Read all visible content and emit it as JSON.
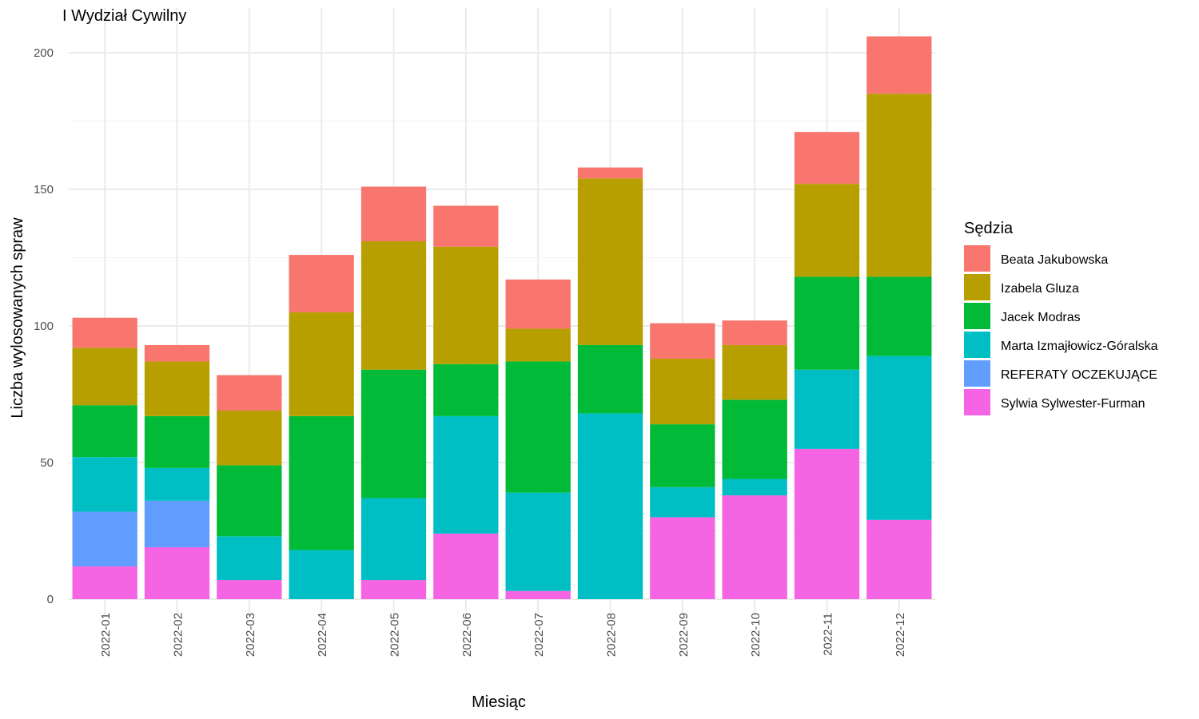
{
  "chart_data": {
    "type": "bar",
    "stacked": true,
    "title": "I Wydział Cywilny",
    "xlabel": "Miesiąc",
    "ylabel": "Liczba wylosowanych spraw",
    "ylim": [
      0,
      210
    ],
    "yticks": [
      0,
      50,
      100,
      150,
      200
    ],
    "grid": true,
    "legend": {
      "title": "Sędzia",
      "position": "right"
    },
    "categories": [
      "2022-01",
      "2022-02",
      "2022-03",
      "2022-04",
      "2022-05",
      "2022-06",
      "2022-07",
      "2022-08",
      "2022-09",
      "2022-10",
      "2022-11",
      "2022-12"
    ],
    "stack_order_bottom_to_top": [
      "Sylwia Sylwester-Furman",
      "REFERATY OCZEKUJĄCE",
      "Marta Izmajłowicz-Góralska",
      "Jacek Modras",
      "Izabela Gluza",
      "Beata Jakubowska"
    ],
    "series": [
      {
        "name": "Beata Jakubowska",
        "color": "#F8766D",
        "values": [
          11,
          6,
          13,
          21,
          20,
          15,
          18,
          4,
          13,
          9,
          19,
          21
        ]
      },
      {
        "name": "Izabela Gluza",
        "color": "#B79F00",
        "values": [
          21,
          20,
          20,
          38,
          47,
          43,
          12,
          61,
          24,
          20,
          34,
          67
        ]
      },
      {
        "name": "Jacek Modras",
        "color": "#00BA38",
        "values": [
          19,
          19,
          26,
          49,
          47,
          19,
          48,
          25,
          23,
          29,
          34,
          29
        ]
      },
      {
        "name": "Marta Izmajłowicz-Góralska",
        "color": "#00BFC4",
        "values": [
          20,
          12,
          16,
          18,
          30,
          43,
          36,
          68,
          11,
          6,
          29,
          60
        ]
      },
      {
        "name": "REFERATY OCZEKUJĄCE",
        "color": "#619CFF",
        "values": [
          20,
          17,
          0,
          0,
          0,
          0,
          0,
          0,
          0,
          0,
          0,
          0
        ]
      },
      {
        "name": "Sylwia Sylwester-Furman",
        "color": "#F564E3",
        "values": [
          12,
          19,
          7,
          0,
          7,
          24,
          3,
          0,
          30,
          38,
          55,
          29
        ]
      }
    ]
  }
}
